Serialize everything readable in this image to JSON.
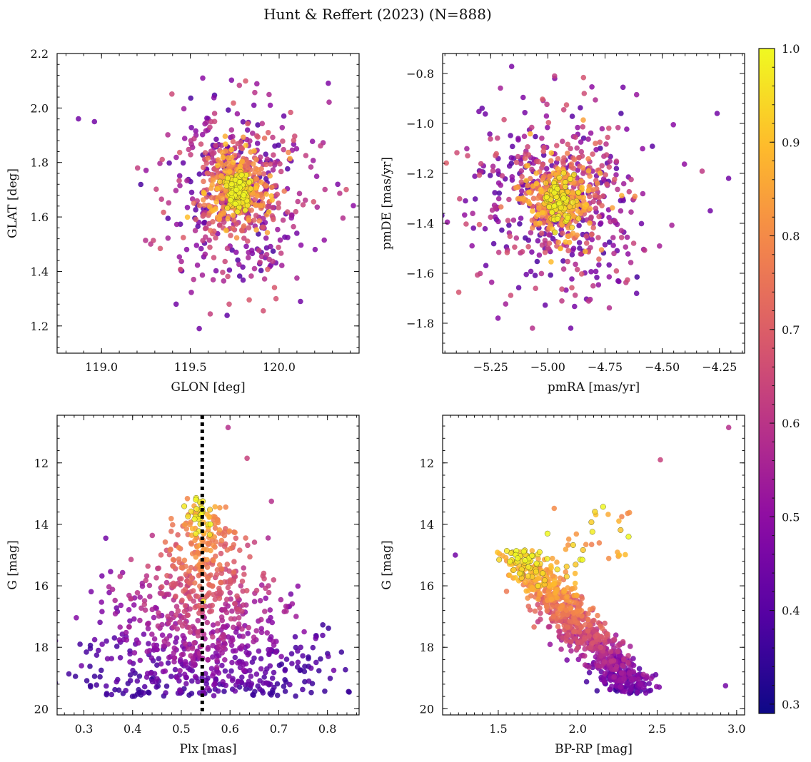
{
  "chart_data": {
    "type": "scatter",
    "title": "Hunt & Reffert (2023) (N=888)",
    "n_points": 888,
    "colorbar": {
      "cmap": "plasma",
      "range": [
        0.29,
        1.0
      ],
      "ticks": [
        "0.3",
        "0.4",
        "0.5",
        "0.6",
        "0.7",
        "0.8",
        "0.9",
        "1.0"
      ],
      "tick_values": [
        0.3,
        0.4,
        0.5,
        0.6,
        0.7,
        0.8,
        0.9,
        1.0
      ],
      "colors": [
        "#0d0887",
        "#5302a3",
        "#8b0aa5",
        "#b83289",
        "#db5c68",
        "#f48849",
        "#febd2a",
        "#f0f921"
      ]
    },
    "panels": [
      {
        "id": "sky",
        "xlabel": "GLON [deg]",
        "ylabel": "GLAT [deg]",
        "xlim": [
          118.75,
          120.45
        ],
        "ylim": [
          1.1,
          2.2
        ],
        "invert_y": false,
        "xticks": [
          119.0,
          119.5,
          120.0
        ],
        "xtick_labels": [
          "119.0",
          "119.5",
          "120.0"
        ],
        "yticks": [
          1.2,
          1.4,
          1.6,
          1.8,
          2.0,
          2.2
        ],
        "ytick_labels": [
          "1.2",
          "1.4",
          "1.6",
          "1.8",
          "2.0",
          "2.2"
        ],
        "x_minor_step": 0.1,
        "y_minor_step": 0.04,
        "gen": {
          "mode": "blob",
          "cx": 119.77,
          "cy": 1.7,
          "sx": 0.17,
          "sy": 0.13,
          "clusterFrac": 0.12
        },
        "sample_points": [
          {
            "x": 118.87,
            "y": 1.96,
            "p": 0.4
          },
          {
            "x": 118.96,
            "y": 1.95,
            "p": 0.4
          },
          {
            "x": 119.57,
            "y": 2.11,
            "p": 0.45
          },
          {
            "x": 120.33,
            "y": 1.72,
            "p": 0.42
          },
          {
            "x": 119.55,
            "y": 1.19,
            "p": 0.4
          },
          {
            "x": 119.95,
            "y": 2.01,
            "p": 0.45
          },
          {
            "x": 120.12,
            "y": 1.29,
            "p": 0.4
          },
          {
            "x": 119.42,
            "y": 1.28,
            "p": 0.4
          },
          {
            "x": 119.76,
            "y": 1.7,
            "p": 1.0
          },
          {
            "x": 119.8,
            "y": 1.68,
            "p": 1.0
          }
        ]
      },
      {
        "id": "pm",
        "xlabel": "pmRA [mas/yr]",
        "ylabel": "pmDE [mas/yr]",
        "xlim": [
          -5.46,
          -4.14
        ],
        "ylim": [
          -1.92,
          -0.72
        ],
        "invert_y": false,
        "xticks": [
          -5.25,
          -5.0,
          -4.75,
          -4.5,
          -4.25
        ],
        "xtick_labels": [
          "−5.25",
          "−5.00",
          "−4.75",
          "−4.50",
          "−4.25"
        ],
        "yticks": [
          -1.8,
          -1.6,
          -1.4,
          -1.2,
          -1.0,
          -0.8
        ],
        "ytick_labels": [
          "−1.8",
          "−1.6",
          "−1.4",
          "−1.2",
          "−1.0",
          "−0.8"
        ],
        "x_minor_step": 0.05,
        "y_minor_step": 0.04,
        "gen": {
          "mode": "blob",
          "cx": -4.95,
          "cy": -1.31,
          "sx": 0.16,
          "sy": 0.15,
          "clusterFrac": 0.12
        },
        "sample_points": [
          {
            "x": -4.26,
            "y": -0.96,
            "p": 0.4
          },
          {
            "x": -4.21,
            "y": -1.22,
            "p": 0.4
          },
          {
            "x": -4.29,
            "y": -1.35,
            "p": 0.4
          },
          {
            "x": -4.9,
            "y": -1.82,
            "p": 0.4
          },
          {
            "x": -5.36,
            "y": -1.31,
            "p": 0.4
          },
          {
            "x": -4.97,
            "y": -0.82,
            "p": 0.42
          },
          {
            "x": -4.95,
            "y": -1.32,
            "p": 1.0
          }
        ]
      },
      {
        "id": "plx",
        "xlabel": "Plx [mas]",
        "ylabel": "G [mag]",
        "xlim": [
          0.245,
          0.865
        ],
        "ylim": [
          10.45,
          20.2
        ],
        "invert_y": true,
        "xticks": [
          0.3,
          0.4,
          0.5,
          0.6,
          0.7,
          0.8
        ],
        "xtick_labels": [
          "0.3",
          "0.4",
          "0.5",
          "0.6",
          "0.7",
          "0.8"
        ],
        "yticks": [
          12,
          14,
          16,
          18,
          20
        ],
        "ytick_labels": [
          "12",
          "14",
          "16",
          "18",
          "20"
        ],
        "x_minor_step": 0.02,
        "y_minor_step": 0.4,
        "vline": 0.543,
        "gen": {
          "mode": "plx",
          "cx": 0.545
        },
        "sample_points": [
          {
            "x": 0.295,
            "y": 18.6,
            "p": 0.4
          },
          {
            "x": 0.813,
            "y": 18.75,
            "p": 0.4
          },
          {
            "x": 0.596,
            "y": 10.85,
            "p": 0.55
          },
          {
            "x": 0.635,
            "y": 11.85,
            "p": 0.6
          },
          {
            "x": 0.685,
            "y": 13.25,
            "p": 0.55
          },
          {
            "x": 0.345,
            "y": 14.45,
            "p": 0.4
          },
          {
            "x": 0.53,
            "y": 13.2,
            "p": 1.0
          },
          {
            "x": 0.545,
            "y": 16.5,
            "p": 0.95
          }
        ]
      },
      {
        "id": "cmd",
        "xlabel": "BP-RP [mag]",
        "ylabel": "G [mag]",
        "xlim": [
          1.15,
          3.05
        ],
        "ylim": [
          10.45,
          20.2
        ],
        "invert_y": true,
        "xticks": [
          1.5,
          2.0,
          2.5,
          3.0
        ],
        "xtick_labels": [
          "1.5",
          "2.0",
          "2.5",
          "3.0"
        ],
        "yticks": [
          12,
          14,
          16,
          18,
          20
        ],
        "ytick_labels": [
          "12",
          "14",
          "16",
          "18",
          "20"
        ],
        "x_minor_step": 0.05,
        "y_minor_step": 0.4,
        "gen": {
          "mode": "cmd"
        },
        "sample_points": [
          {
            "x": 2.95,
            "y": 10.85,
            "p": 0.55
          },
          {
            "x": 2.52,
            "y": 11.9,
            "p": 0.6
          },
          {
            "x": 2.93,
            "y": 19.25,
            "p": 0.4
          },
          {
            "x": 1.23,
            "y": 15.0,
            "p": 0.4
          },
          {
            "x": 1.81,
            "y": 14.3,
            "p": 1.0
          },
          {
            "x": 2.32,
            "y": 14.4,
            "p": 1.0
          },
          {
            "x": 1.75,
            "y": 16.0,
            "p": 0.95
          }
        ]
      }
    ]
  }
}
